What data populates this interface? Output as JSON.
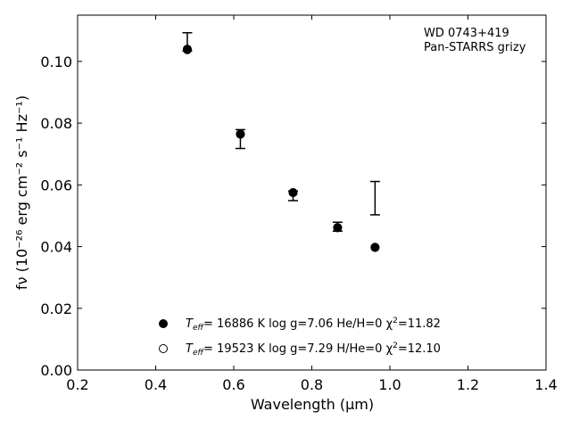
{
  "chart_data": {
    "type": "scatter",
    "title": "",
    "xlabel": "Wavelength (μm)",
    "ylabel": "fν (10⁻²⁶ erg cm⁻² s⁻¹ Hz⁻¹)",
    "xlim": [
      0.2,
      1.4
    ],
    "ylim": [
      0.0,
      0.115
    ],
    "xticks": [
      "0.2",
      "0.4",
      "0.6",
      "0.8",
      "1.0",
      "1.2",
      "1.4"
    ],
    "yticks": [
      "0.00",
      "0.02",
      "0.04",
      "0.06",
      "0.08",
      "0.10"
    ],
    "annotation": [
      "WD 0743+419",
      "Pan-STARRS grizy"
    ],
    "observed": {
      "x": [
        0.481,
        0.617,
        0.752,
        0.866,
        0.962
      ],
      "y_low": [
        0.1034,
        0.0718,
        0.0549,
        0.045,
        0.0503
      ],
      "y_high": [
        0.1093,
        0.0779,
        0.058,
        0.0479,
        0.0611
      ]
    },
    "series": [
      {
        "name": "Teff= 16886 K  log g=7.06  He/H=0  χ²=11.82",
        "marker": "filled",
        "x": [
          0.481,
          0.617,
          0.752,
          0.866,
          0.962
        ],
        "y": [
          0.104,
          0.0765,
          0.0575,
          0.0461,
          0.0397
        ]
      },
      {
        "name": "Teff= 19523 K  log g=7.29  H/He=0  χ²=12.10",
        "marker": "open",
        "x": [
          0.481,
          0.617,
          0.752,
          0.866,
          0.962
        ],
        "y": [
          0.1038,
          0.0764,
          0.0575,
          0.0462,
          0.0398
        ]
      }
    ],
    "legend": [
      {
        "label_prefix": "T",
        "label_sub": "eff",
        "label_rest": "= 16886 K  log g=7.06  He/H=0  χ",
        "label_sup": "2",
        "label_end": "=11.82"
      },
      {
        "label_prefix": "T",
        "label_sub": "eff",
        "label_rest": "= 19523 K  log g=7.29  H/He=0  χ",
        "label_sup": "2",
        "label_end": "=12.10"
      }
    ],
    "legend_position": "lower-center",
    "grid": false
  }
}
